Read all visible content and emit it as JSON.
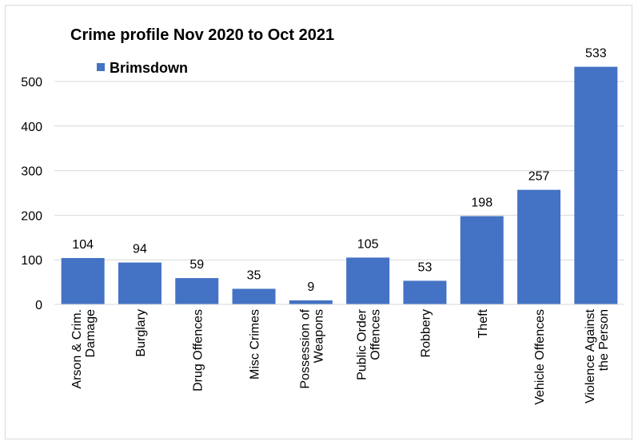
{
  "chart_data": {
    "type": "bar",
    "title": "Crime profile Nov 2020 to Oct 2021",
    "xlabel": "",
    "ylabel": "",
    "ylim": [
      0,
      560
    ],
    "yticks": [
      0,
      100,
      200,
      300,
      400,
      500
    ],
    "grid": true,
    "legend_position": "top-left",
    "bar_color": "#4472C4",
    "categories": [
      "Arson & Crim. Damage",
      "Burglary",
      "Drug Offences",
      "Misc Crimes",
      "Possession of Weapons",
      "Public Order Offences",
      "Robbery",
      "Theft",
      "Vehicle Offences",
      "Violence Against the Person"
    ],
    "category_lines": [
      [
        "Arson & Crim.",
        "Damage"
      ],
      [
        "Burglary"
      ],
      [
        "Drug Offences"
      ],
      [
        "Misc Crimes"
      ],
      [
        "Possession of",
        "Weapons"
      ],
      [
        "Public Order",
        "Offences"
      ],
      [
        "Robbery"
      ],
      [
        "Theft"
      ],
      [
        "Vehicle Offences"
      ],
      [
        "Violence Against",
        "the Person"
      ]
    ],
    "series": [
      {
        "name": "Brimsdown",
        "values": [
          104,
          94,
          59,
          35,
          9,
          105,
          53,
          198,
          257,
          533
        ]
      }
    ]
  }
}
